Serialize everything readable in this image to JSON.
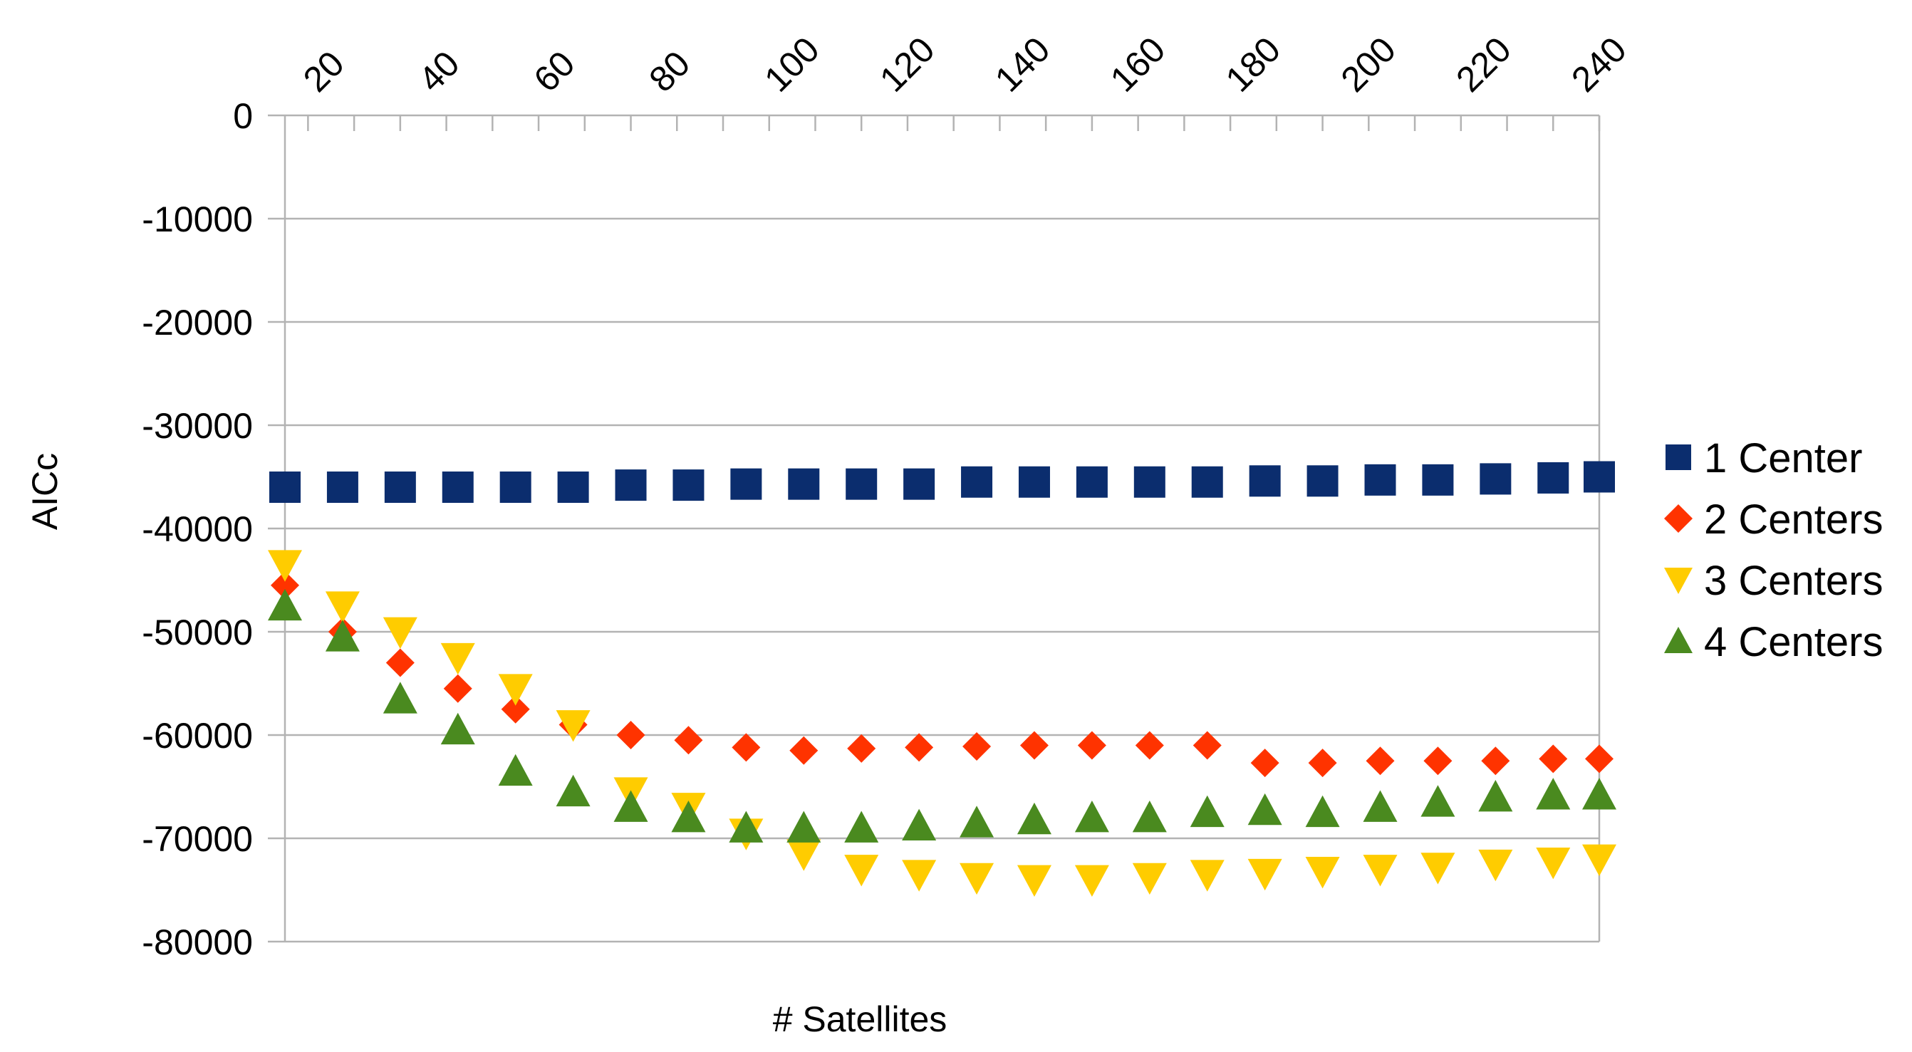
{
  "chart_data": {
    "type": "scatter",
    "title": "",
    "xlabel": "# Satellites",
    "ylabel": "AICc",
    "xlim": [
      12,
      240
    ],
    "ylim": [
      -80000,
      0
    ],
    "x_ticks": [
      20,
      40,
      60,
      80,
      100,
      120,
      140,
      160,
      180,
      200,
      220,
      240
    ],
    "y_ticks": [
      0,
      -10000,
      -20000,
      -30000,
      -40000,
      -50000,
      -60000,
      -70000,
      -80000
    ],
    "y_tick_labels": [
      "0",
      "-10000",
      "-20000",
      "-30000",
      "-40000",
      "-50000",
      "-60000",
      "-70000",
      "-80000"
    ],
    "x_axis_position": "top",
    "grid": "horizontal",
    "legend_position": "right",
    "x": [
      12,
      22,
      32,
      42,
      52,
      62,
      72,
      82,
      92,
      102,
      112,
      122,
      132,
      142,
      152,
      162,
      172,
      182,
      192,
      202,
      212,
      222,
      232,
      240
    ],
    "series": [
      {
        "name": "1 Center",
        "marker": "square",
        "color": "#0b2d6e",
        "values": [
          -36000,
          -36000,
          -36000,
          -36000,
          -36000,
          -36000,
          -35800,
          -35800,
          -35700,
          -35700,
          -35700,
          -35700,
          -35500,
          -35500,
          -35500,
          -35500,
          -35500,
          -35400,
          -35400,
          -35300,
          -35300,
          -35200,
          -35100,
          -35000
        ]
      },
      {
        "name": "2 Centers",
        "marker": "diamond",
        "color": "#ff3300",
        "values": [
          -45500,
          -50000,
          -53000,
          -55500,
          -57500,
          -59000,
          -60000,
          -60500,
          -61200,
          -61500,
          -61300,
          -61200,
          -61100,
          -61000,
          -61000,
          -61000,
          -61000,
          -62700,
          -62700,
          -62500,
          -62500,
          -62500,
          -62300,
          -62300
        ]
      },
      {
        "name": "3 Centers",
        "marker": "triangle-down",
        "color": "#ffcc00",
        "values": [
          -43500,
          -47500,
          -50000,
          -52500,
          -55500,
          -59000,
          -65500,
          -67000,
          -69500,
          -71500,
          -73000,
          -73500,
          -73800,
          -74000,
          -74000,
          -73800,
          -73500,
          -73400,
          -73200,
          -73000,
          -72800,
          -72500,
          -72300,
          -72000
        ]
      },
      {
        "name": "4 Centers",
        "marker": "triangle-up",
        "color": "#4a8a1f",
        "values": [
          -47500,
          -50500,
          -56500,
          -59500,
          -63500,
          -65500,
          -67000,
          -68000,
          -69000,
          -69000,
          -69000,
          -68800,
          -68500,
          -68200,
          -68000,
          -68000,
          -67500,
          -67300,
          -67500,
          -67000,
          -66500,
          -66000,
          -65800,
          -65800
        ]
      }
    ]
  }
}
